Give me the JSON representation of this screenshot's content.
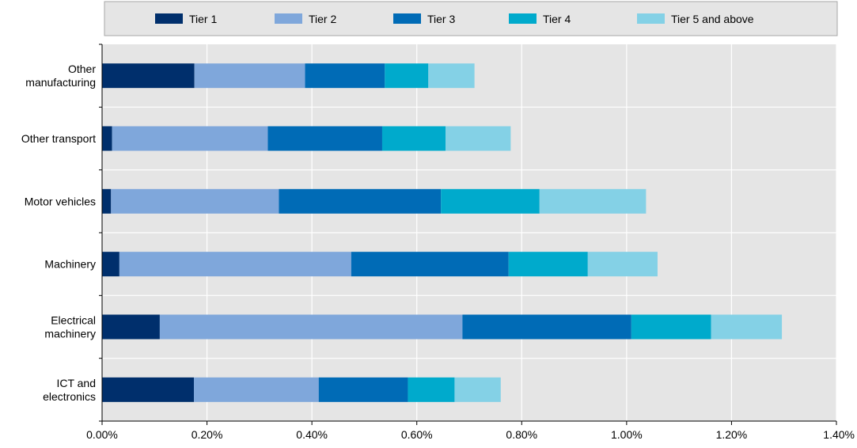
{
  "chart_data": {
    "type": "bar",
    "orientation": "horizontal",
    "stacked": true,
    "categories": [
      "Other manufacturing",
      "Other transport",
      "Motor vehicles",
      "Machinery",
      "Electrical machinery",
      "ICT and electronics"
    ],
    "category_label_lines": [
      [
        "Other",
        "manufacturing"
      ],
      [
        "Other transport"
      ],
      [
        "Motor vehicles"
      ],
      [
        "Machinery"
      ],
      [
        "Electrical",
        "machinery"
      ],
      [
        "ICT and",
        "electronics"
      ]
    ],
    "series": [
      {
        "name": "Tier 1",
        "color": "#002F6C",
        "values": [
          0.176,
          0.019,
          0.017,
          0.033,
          0.11,
          0.175
        ]
      },
      {
        "name": "Tier 2",
        "color": "#7FA7DB",
        "values": [
          0.211,
          0.297,
          0.32,
          0.442,
          0.577,
          0.238
        ]
      },
      {
        "name": "Tier 3",
        "color": "#006BB6",
        "values": [
          0.152,
          0.218,
          0.309,
          0.3,
          0.322,
          0.17
        ]
      },
      {
        "name": "Tier 4",
        "color": "#00AACC",
        "values": [
          0.083,
          0.121,
          0.188,
          0.151,
          0.152,
          0.089
        ]
      },
      {
        "name": "Tier 5 and above",
        "color": "#84D1E6",
        "values": [
          0.088,
          0.124,
          0.203,
          0.133,
          0.135,
          0.088
        ]
      }
    ],
    "x_ticks": [
      "0.00%",
      "0.20%",
      "0.40%",
      "0.60%",
      "0.80%",
      "1.00%",
      "1.20%",
      "1.40%"
    ],
    "xlim": [
      0,
      1.4
    ],
    "x_unit": "%",
    "title": "",
    "xlabel": "",
    "ylabel": "",
    "grid": true,
    "legend_position": "top",
    "background_color": "#E5E5E5",
    "gridline_color": "#FFFFFF"
  }
}
